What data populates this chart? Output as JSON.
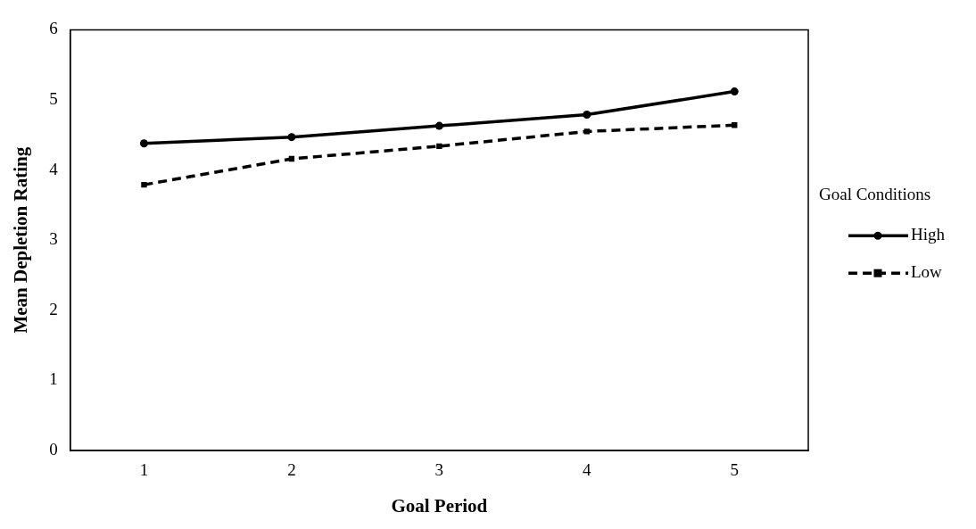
{
  "chart_data": {
    "type": "line",
    "xlabel": "Goal Period",
    "ylabel": "Mean Depletion Rating",
    "legend_title": "Goal Conditions",
    "legend": "right",
    "grid": false,
    "categories": [
      "1",
      "2",
      "3",
      "4",
      "5"
    ],
    "ylim": [
      0,
      6
    ],
    "yticks": [
      0,
      1,
      2,
      3,
      4,
      5,
      6
    ],
    "series": [
      {
        "name": "High",
        "color": "#000000",
        "marker": "circle",
        "line_style": "solid",
        "values": [
          4.38,
          4.47,
          4.63,
          4.79,
          5.12
        ]
      },
      {
        "name": "Low",
        "color": "#000000",
        "marker": "square",
        "line_style": "dashed",
        "values": [
          3.79,
          4.16,
          4.34,
          4.55,
          4.64
        ]
      }
    ]
  }
}
